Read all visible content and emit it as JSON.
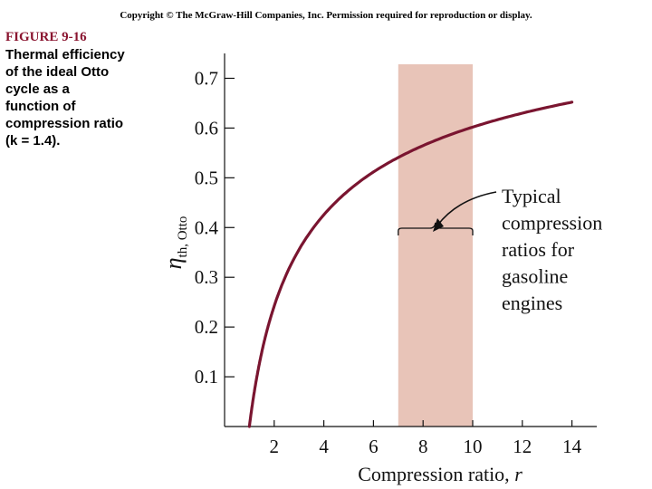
{
  "copyright": "Copyright © The McGraw-Hill Companies, Inc. Permission required for reproduction or display.",
  "caption": {
    "figure_label": "FIGURE 9-16",
    "text": "Thermal efficiency\nof the ideal Otto\ncycle as a\nfunction of\ncompression ratio\n(k = 1.4)."
  },
  "colors": {
    "curve": "#7a1530",
    "band": "#e8c4b8",
    "axis": "#111111"
  },
  "chart_data": {
    "type": "line",
    "xlabel": "Compression ratio, r",
    "ylabel": "η_th, Otto",
    "xlim": [
      0,
      15
    ],
    "ylim": [
      0,
      0.75
    ],
    "xticks": [
      2,
      4,
      6,
      8,
      10,
      12,
      14
    ],
    "yticks": [
      0.1,
      0.2,
      0.3,
      0.4,
      0.5,
      0.6,
      0.7
    ],
    "grid": false,
    "series": [
      {
        "values_description": "eta = 1 - r^(1-k), k = 1.4",
        "k": 1.4,
        "x": [
          1,
          1.1,
          1.25,
          1.5,
          2,
          2.5,
          3,
          4,
          5,
          6,
          7,
          8,
          9,
          10,
          11,
          12,
          13,
          14
        ],
        "y": [
          0,
          0.037,
          0.085,
          0.15,
          0.242,
          0.307,
          0.356,
          0.426,
          0.475,
          0.512,
          0.541,
          0.565,
          0.585,
          0.602,
          0.617,
          0.63,
          0.641,
          0.652
        ]
      }
    ],
    "shaded_band": {
      "x_start": 7,
      "x_end": 10
    },
    "annotation": [
      "Typical",
      "compression",
      "ratios for",
      "gasoline",
      "engines"
    ]
  }
}
